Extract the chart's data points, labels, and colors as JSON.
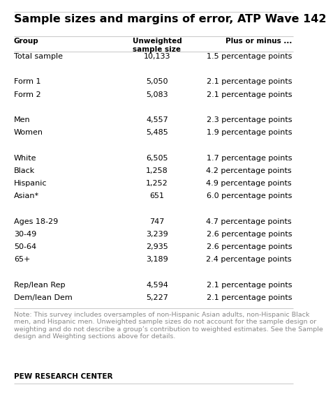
{
  "title": "Sample sizes and margins of error, ATP Wave 142",
  "col1_header": "Group",
  "col2_header": "Unweighted\nsample size",
  "col3_header": "Plus or minus ...",
  "rows": [
    [
      "Total sample",
      "10,133",
      "1.5 percentage points"
    ],
    [
      "",
      "",
      ""
    ],
    [
      "Form 1",
      "5,050",
      "2.1 percentage points"
    ],
    [
      "Form 2",
      "5,083",
      "2.1 percentage points"
    ],
    [
      "",
      "",
      ""
    ],
    [
      "Men",
      "4,557",
      "2.3 percentage points"
    ],
    [
      "Women",
      "5,485",
      "1.9 percentage points"
    ],
    [
      "",
      "",
      ""
    ],
    [
      "White",
      "6,505",
      "1.7 percentage points"
    ],
    [
      "Black",
      "1,258",
      "4.2 percentage points"
    ],
    [
      "Hispanic",
      "1,252",
      "4.9 percentage points"
    ],
    [
      "Asian*",
      "651",
      "6.0 percentage points"
    ],
    [
      "",
      "",
      ""
    ],
    [
      "Ages 18-29",
      "747",
      "4.7 percentage points"
    ],
    [
      "30-49",
      "3,239",
      "2.6 percentage points"
    ],
    [
      "50-64",
      "2,935",
      "2.6 percentage points"
    ],
    [
      "65+",
      "3,189",
      "2.4 percentage points"
    ],
    [
      "",
      "",
      ""
    ],
    [
      "Rep/lean Rep",
      "4,594",
      "2.1 percentage points"
    ],
    [
      "Dem/lean Dem",
      "5,227",
      "2.1 percentage points"
    ]
  ],
  "note_text": "Note: This survey includes oversamples of non-Hispanic Asian adults, non-Hispanic Black\nmen, and Hispanic men. Unweighted sample sizes do not account for the sample design or\nweighting and do not describe a group’s contribution to weighted estimates. See the Sample\ndesign and Weighting sections above for details.",
  "footer": "PEW RESEARCH CENTER",
  "bg_color": "#ffffff",
  "title_color": "#000000",
  "header_color": "#000000",
  "row_color": "#000000",
  "note_color": "#888888",
  "footer_color": "#000000",
  "title_fontsize": 11.5,
  "header_fontsize": 7.5,
  "row_fontsize": 8.0,
  "note_fontsize": 6.8,
  "footer_fontsize": 7.5
}
